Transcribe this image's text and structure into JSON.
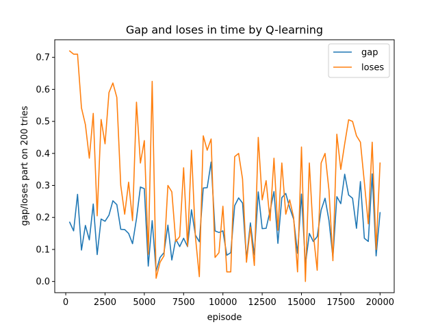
{
  "chart_data": {
    "type": "line",
    "title": "Gap and loses in time by Q-learning",
    "xlabel": "episode",
    "ylabel": "gap/loses part on 200 tries",
    "xlim": [
      -700,
      20900
    ],
    "ylim": [
      -0.035,
      0.755
    ],
    "xticks": [
      0,
      2500,
      5000,
      7500,
      10000,
      12500,
      15000,
      17500,
      20000
    ],
    "yticks": [
      0.0,
      0.1,
      0.2,
      0.3,
      0.4,
      0.5,
      0.6,
      0.7
    ],
    "grid": false,
    "legend_position": "top-right",
    "x": [
      250,
      500,
      750,
      1000,
      1250,
      1500,
      1750,
      2000,
      2250,
      2500,
      2750,
      3000,
      3250,
      3500,
      3750,
      4000,
      4250,
      4500,
      4750,
      5000,
      5250,
      5500,
      5750,
      6000,
      6250,
      6500,
      6750,
      7000,
      7250,
      7500,
      7750,
      8000,
      8250,
      8500,
      8750,
      9000,
      9250,
      9500,
      9750,
      10000,
      10250,
      10500,
      10750,
      11000,
      11250,
      11500,
      11750,
      12000,
      12250,
      12500,
      12750,
      13000,
      13250,
      13500,
      13750,
      14000,
      14250,
      14500,
      14750,
      15000,
      15250,
      15500,
      15750,
      16000,
      16250,
      16500,
      16750,
      17000,
      17250,
      17500,
      17750,
      18000,
      18250,
      18500,
      18750,
      19000,
      19250,
      19500,
      19750,
      20000
    ],
    "series": [
      {
        "name": "gap",
        "color": "#1f77b4",
        "values": [
          0.185,
          0.158,
          0.272,
          0.098,
          0.175,
          0.13,
          0.242,
          0.084,
          0.195,
          0.188,
          0.207,
          0.252,
          0.24,
          0.163,
          0.162,
          0.15,
          0.118,
          0.196,
          0.295,
          0.29,
          0.048,
          0.19,
          0.032,
          0.075,
          0.09,
          0.176,
          0.067,
          0.132,
          0.109,
          0.135,
          0.109,
          0.224,
          0.145,
          0.124,
          0.292,
          0.293,
          0.373,
          0.158,
          0.153,
          0.158,
          0.082,
          0.09,
          0.237,
          0.261,
          0.245,
          0.07,
          0.183,
          0.083,
          0.28,
          0.165,
          0.166,
          0.22,
          0.281,
          0.119,
          0.262,
          0.275,
          0.23,
          0.195,
          0.088,
          0.273,
          0.052,
          0.15,
          0.125,
          0.14,
          0.223,
          0.26,
          0.19,
          0.075,
          0.265,
          0.243,
          0.335,
          0.27,
          0.26,
          0.166,
          0.312,
          0.135,
          0.125,
          0.336,
          0.08,
          0.215
        ]
      },
      {
        "name": "loses",
        "color": "#ff7f0e",
        "values": [
          0.72,
          0.71,
          0.71,
          0.542,
          0.49,
          0.385,
          0.525,
          0.205,
          0.506,
          0.43,
          0.59,
          0.62,
          0.575,
          0.3,
          0.21,
          0.31,
          0.19,
          0.56,
          0.37,
          0.44,
          0.085,
          0.625,
          0.01,
          0.06,
          0.08,
          0.3,
          0.28,
          0.125,
          0.14,
          0.355,
          0.11,
          0.41,
          0.14,
          0.015,
          0.455,
          0.41,
          0.445,
          0.075,
          0.09,
          0.235,
          0.03,
          0.03,
          0.39,
          0.4,
          0.32,
          0.06,
          0.17,
          0.05,
          0.45,
          0.255,
          0.315,
          0.19,
          0.385,
          0.16,
          0.37,
          0.21,
          0.255,
          0.2,
          0.03,
          0.42,
          0.0,
          0.37,
          0.15,
          0.035,
          0.37,
          0.4,
          0.285,
          0.065,
          0.46,
          0.35,
          0.43,
          0.505,
          0.5,
          0.455,
          0.435,
          0.31,
          0.18,
          0.435,
          0.1,
          0.37
        ]
      }
    ]
  }
}
